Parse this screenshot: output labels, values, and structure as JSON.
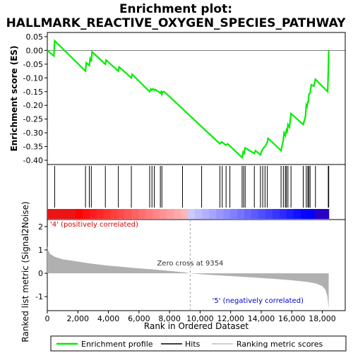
{
  "chart_data": {
    "type": "line",
    "title": [
      "Enrichment plot:",
      "HALLMARK_REACTIVE_OXYGEN_SPECIES_PATHWAY"
    ],
    "es_panel": {
      "ylabel": "Enrichment score (ES)",
      "ylim": [
        -0.4,
        0.05
      ],
      "yticks": [
        0.05,
        0.0,
        -0.05,
        -0.1,
        -0.15,
        -0.2,
        -0.25,
        -0.3,
        -0.35,
        -0.4
      ],
      "ytick_labels": [
        "0.05",
        "0.00",
        "-0.05",
        "-0.10",
        "-0.15",
        "-0.20",
        "-0.25",
        "-0.30",
        "-0.35",
        "-0.40"
      ],
      "color": "#00ee00",
      "profile": [
        [
          0,
          0.0
        ],
        [
          430,
          -0.02
        ],
        [
          480,
          0.035
        ],
        [
          2500,
          -0.075
        ],
        [
          2550,
          -0.045
        ],
        [
          2750,
          -0.055
        ],
        [
          2800,
          -0.03
        ],
        [
          2880,
          -0.04
        ],
        [
          2930,
          -0.005
        ],
        [
          3800,
          -0.05
        ],
        [
          3850,
          -0.035
        ],
        [
          4650,
          -0.075
        ],
        [
          4700,
          -0.06
        ],
        [
          5500,
          -0.1
        ],
        [
          5550,
          -0.087
        ],
        [
          6700,
          -0.15
        ],
        [
          6780,
          -0.14
        ],
        [
          6850,
          -0.145
        ],
        [
          6920,
          -0.14
        ],
        [
          7000,
          -0.145
        ],
        [
          7050,
          -0.142
        ],
        [
          7400,
          -0.155
        ],
        [
          7450,
          -0.15
        ],
        [
          7500,
          -0.16
        ],
        [
          7560,
          -0.15
        ],
        [
          7650,
          -0.15
        ],
        [
          11300,
          -0.34
        ],
        [
          11400,
          -0.333
        ],
        [
          11700,
          -0.345
        ],
        [
          11800,
          -0.34
        ],
        [
          12750,
          -0.39
        ],
        [
          12820,
          -0.37
        ],
        [
          12880,
          -0.375
        ],
        [
          12950,
          -0.355
        ],
        [
          13550,
          -0.375
        ],
        [
          13620,
          -0.365
        ],
        [
          13950,
          -0.38
        ],
        [
          14000,
          -0.37
        ],
        [
          14100,
          -0.36
        ],
        [
          14150,
          -0.355
        ],
        [
          14250,
          -0.35
        ],
        [
          14300,
          -0.345
        ],
        [
          14400,
          -0.335
        ],
        [
          14450,
          -0.32
        ],
        [
          15300,
          -0.365
        ],
        [
          15380,
          -0.345
        ],
        [
          15450,
          -0.325
        ],
        [
          15500,
          -0.3
        ],
        [
          15580,
          -0.31
        ],
        [
          15650,
          -0.29
        ],
        [
          15700,
          -0.295
        ],
        [
          15750,
          -0.27
        ],
        [
          15850,
          -0.28
        ],
        [
          15950,
          -0.23
        ],
        [
          16750,
          -0.27
        ],
        [
          16850,
          -0.25
        ],
        [
          16900,
          -0.24
        ],
        [
          16950,
          -0.2
        ],
        [
          17000,
          -0.205
        ],
        [
          17050,
          -0.185
        ],
        [
          17080,
          -0.19
        ],
        [
          17120,
          -0.16
        ],
        [
          17200,
          -0.155
        ],
        [
          17280,
          -0.125
        ],
        [
          17450,
          -0.13
        ],
        [
          17550,
          -0.105
        ],
        [
          18350,
          -0.15
        ],
        [
          18390,
          -0.08
        ],
        [
          18420,
          0.0
        ]
      ]
    },
    "hits_panel": {
      "hits": [
        480,
        2500,
        2750,
        2880,
        3800,
        4650,
        5500,
        6700,
        6850,
        7000,
        7400,
        7500,
        8850,
        10100,
        11300,
        11450,
        11700,
        11950,
        12750,
        12850,
        12950,
        13550,
        13950,
        14100,
        14250,
        14400,
        15300,
        15450,
        15580,
        15650,
        15750,
        15950,
        16750,
        16950,
        17050,
        17120,
        17200,
        17550,
        18390,
        18420
      ]
    },
    "metric_panel": {
      "ylabel": "Ranked list metric (Signal2Noise)",
      "ylim": [
        -1.6,
        2.3
      ],
      "yticks": [
        2,
        1,
        0,
        -1
      ],
      "ytick_labels": [
        "2",
        "1",
        "0",
        "-1"
      ],
      "fill_color": "#b0b0b0",
      "profile": [
        [
          0,
          1.15
        ],
        [
          80,
          0.95
        ],
        [
          200,
          0.82
        ],
        [
          500,
          0.7
        ],
        [
          1000,
          0.6
        ],
        [
          2000,
          0.5
        ],
        [
          3000,
          0.4
        ],
        [
          4000,
          0.33
        ],
        [
          5000,
          0.27
        ],
        [
          6000,
          0.21
        ],
        [
          7000,
          0.16
        ],
        [
          8000,
          0.1
        ],
        [
          9000,
          0.04
        ],
        [
          9354,
          0.0
        ],
        [
          10000,
          -0.04
        ],
        [
          11000,
          -0.08
        ],
        [
          12000,
          -0.12
        ],
        [
          13000,
          -0.16
        ],
        [
          14000,
          -0.2
        ],
        [
          15000,
          -0.25
        ],
        [
          16000,
          -0.3
        ],
        [
          17000,
          -0.37
        ],
        [
          17600,
          -0.44
        ],
        [
          18000,
          -0.55
        ],
        [
          18200,
          -0.7
        ],
        [
          18320,
          -0.95
        ],
        [
          18380,
          -1.3
        ],
        [
          18420,
          -1.5
        ]
      ],
      "zero_cross_label": "Zero cross at 9354",
      "zero_cross": 9354,
      "pos_label": "'4' (positively correlated)",
      "neg_label": "'5' (negatively correlated)"
    },
    "x_axis": {
      "xlabel": "Rank in Ordered Dataset",
      "xlim": [
        0,
        19500
      ],
      "xticks": [
        0,
        2000,
        4000,
        6000,
        8000,
        10000,
        12000,
        14000,
        16000,
        18000
      ],
      "xtick_labels": [
        "0",
        "2,000",
        "4,000",
        "6,000",
        "8,000",
        "10,000",
        "12,000",
        "14,000",
        "16,000",
        "18,000"
      ],
      "n": 18420
    },
    "legend": {
      "items": [
        {
          "label": "Enrichment profile",
          "color": "#00ee00"
        },
        {
          "label": "Hits",
          "color": "#000000"
        },
        {
          "label": "Ranking metric scores",
          "color": "#c0c0c0"
        }
      ]
    }
  }
}
